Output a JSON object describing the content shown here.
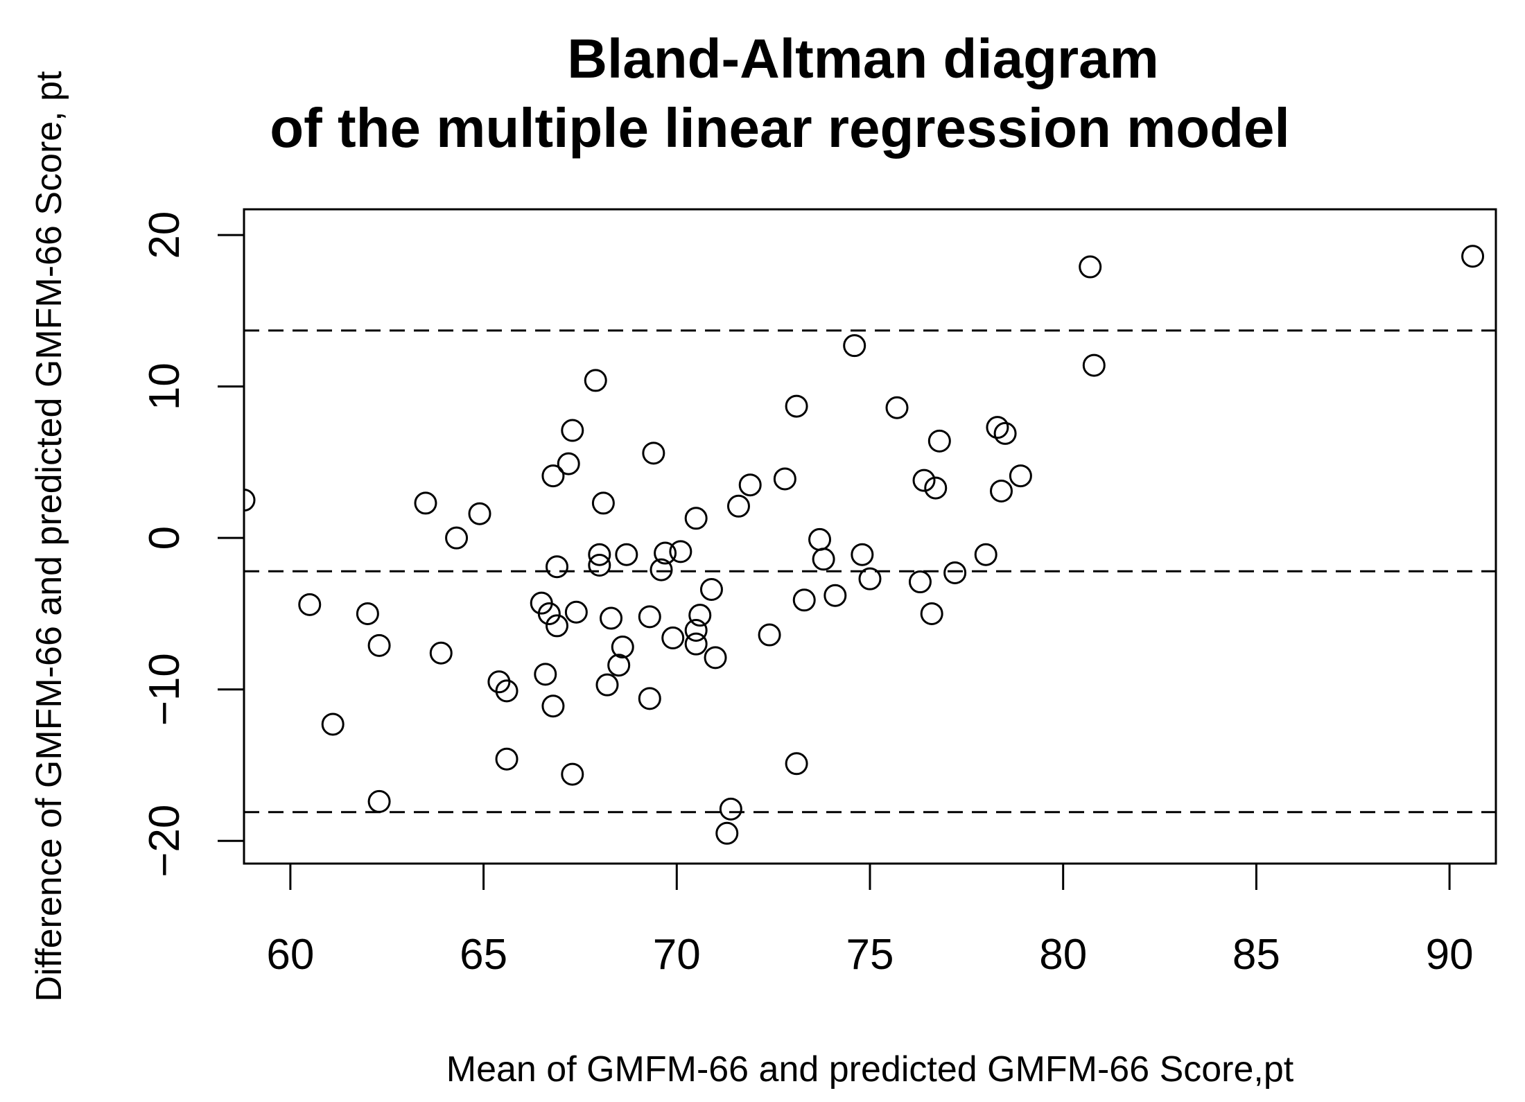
{
  "chart_data": {
    "type": "scatter",
    "title": [
      "Bland-Altman diagram",
      "of the multiple linear regression model"
    ],
    "xlabel": "Mean of GMFM-66 and predicted GMFM-66 Score,pt",
    "ylabel": "Difference of GMFM-66 and predicted GMFM-66 Score, pt",
    "xlim": [
      58.8,
      91.2
    ],
    "ylim": [
      -21.5,
      21.7
    ],
    "xticks": [
      60,
      65,
      70,
      75,
      80,
      85,
      90
    ],
    "xtick_labels": [
      "60",
      "65",
      "70",
      "75",
      "80",
      "85",
      "90"
    ],
    "yticks": [
      -20,
      -10,
      0,
      10,
      20
    ],
    "ytick_labels": [
      "−20",
      "−10",
      "0",
      "10",
      "20"
    ],
    "reference_lines": [
      13.7,
      -2.2,
      -18.1
    ],
    "grid": false,
    "marker": "open-circle",
    "series": [
      {
        "points": [
          [
            58.8,
            2.5
          ],
          [
            60.5,
            -4.4
          ],
          [
            61.1,
            -12.3
          ],
          [
            62.0,
            -5.0
          ],
          [
            62.3,
            -7.1
          ],
          [
            62.3,
            -17.4
          ],
          [
            63.5,
            2.3
          ],
          [
            63.9,
            -7.6
          ],
          [
            64.3,
            0.0
          ],
          [
            64.9,
            1.6
          ],
          [
            65.4,
            -9.5
          ],
          [
            65.6,
            -10.1
          ],
          [
            65.6,
            -14.6
          ],
          [
            66.5,
            -4.3
          ],
          [
            66.6,
            -9.0
          ],
          [
            66.7,
            -5.0
          ],
          [
            66.8,
            -11.1
          ],
          [
            66.8,
            4.1
          ],
          [
            66.9,
            -5.8
          ],
          [
            66.9,
            -1.9
          ],
          [
            67.2,
            4.9
          ],
          [
            67.3,
            7.1
          ],
          [
            67.3,
            -15.6
          ],
          [
            67.4,
            -4.9
          ],
          [
            67.9,
            10.4
          ],
          [
            68.0,
            -1.1
          ],
          [
            68.0,
            -1.8
          ],
          [
            68.1,
            2.3
          ],
          [
            68.2,
            -9.7
          ],
          [
            68.3,
            -5.3
          ],
          [
            68.5,
            -8.4
          ],
          [
            68.6,
            -7.2
          ],
          [
            68.7,
            -1.1
          ],
          [
            69.3,
            -5.2
          ],
          [
            69.3,
            -10.6
          ],
          [
            69.4,
            5.6
          ],
          [
            69.6,
            -2.1
          ],
          [
            69.7,
            -1.0
          ],
          [
            69.9,
            -6.6
          ],
          [
            70.1,
            -0.9
          ],
          [
            70.5,
            -6.1
          ],
          [
            70.5,
            -7.0
          ],
          [
            70.5,
            1.3
          ],
          [
            70.6,
            -5.1
          ],
          [
            70.9,
            -3.4
          ],
          [
            71.0,
            -7.9
          ],
          [
            71.3,
            -19.5
          ],
          [
            71.4,
            -17.9
          ],
          [
            71.6,
            2.1
          ],
          [
            71.9,
            3.5
          ],
          [
            72.4,
            -6.4
          ],
          [
            72.8,
            3.9
          ],
          [
            73.1,
            8.7
          ],
          [
            73.1,
            -14.9
          ],
          [
            73.3,
            -4.1
          ],
          [
            73.7,
            -0.1
          ],
          [
            73.8,
            -1.4
          ],
          [
            74.1,
            -3.8
          ],
          [
            74.6,
            12.7
          ],
          [
            74.8,
            -1.1
          ],
          [
            75.0,
            -2.7
          ],
          [
            75.7,
            8.6
          ],
          [
            76.3,
            -2.9
          ],
          [
            76.4,
            3.8
          ],
          [
            76.6,
            -5.0
          ],
          [
            76.7,
            3.3
          ],
          [
            76.8,
            6.4
          ],
          [
            77.2,
            -2.3
          ],
          [
            78.0,
            -1.1
          ],
          [
            78.3,
            7.3
          ],
          [
            78.4,
            3.1
          ],
          [
            78.5,
            6.9
          ],
          [
            78.9,
            4.1
          ],
          [
            80.7,
            17.9
          ],
          [
            80.8,
            11.4
          ],
          [
            90.6,
            18.6
          ]
        ]
      }
    ]
  }
}
